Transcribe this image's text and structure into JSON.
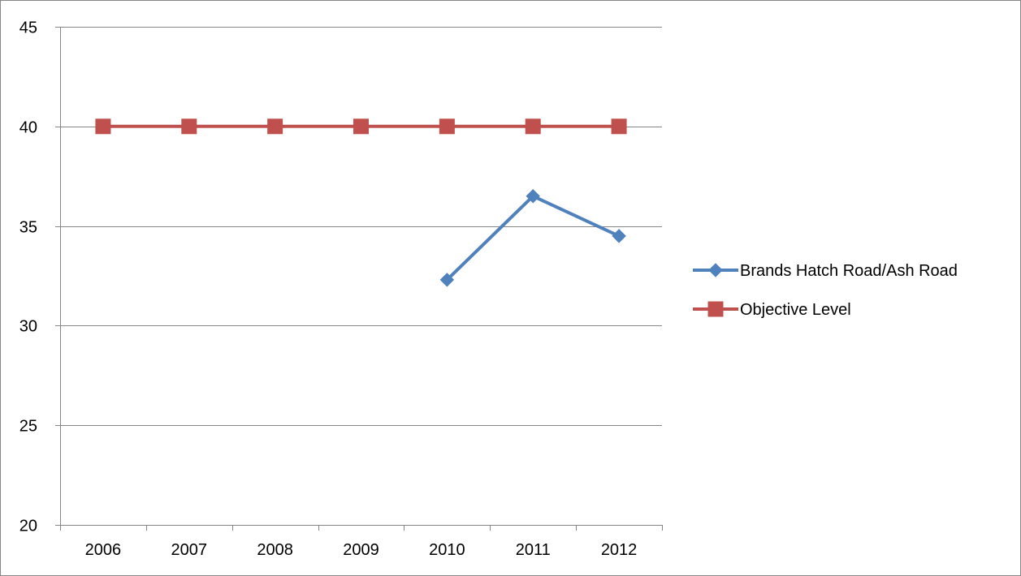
{
  "chart_data": {
    "type": "line",
    "title": "",
    "xlabel": "",
    "ylabel": "",
    "categories": [
      "2006",
      "2007",
      "2008",
      "2009",
      "2010",
      "2011",
      "2012"
    ],
    "ylim": [
      20,
      45
    ],
    "yticks": [
      20,
      25,
      30,
      35,
      40,
      45
    ],
    "grid": true,
    "legend_position": "right",
    "series": [
      {
        "name": "Brands Hatch Road/Ash Road",
        "color": "#4f81bd",
        "marker": "diamond",
        "values": [
          null,
          null,
          null,
          null,
          32.3,
          36.5,
          34.5
        ]
      },
      {
        "name": "Objective Level",
        "color": "#c0504d",
        "marker": "square",
        "values": [
          40,
          40,
          40,
          40,
          40,
          40,
          40
        ]
      }
    ]
  },
  "colors": {
    "gridline": "#868686",
    "axis": "#868686",
    "frame": "#868686"
  }
}
